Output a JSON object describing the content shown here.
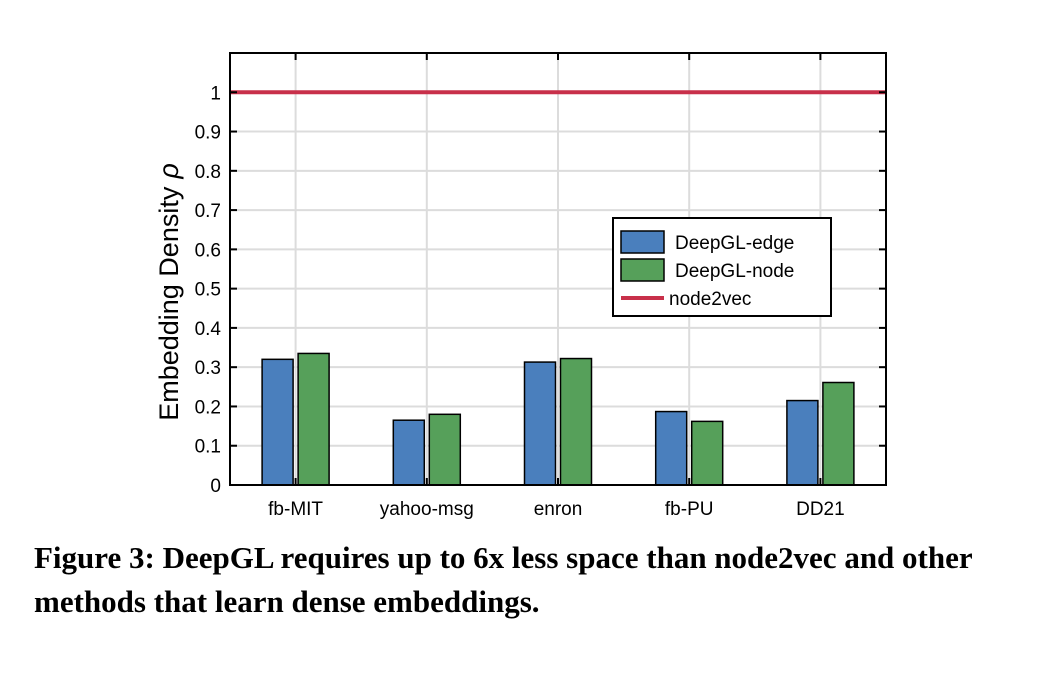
{
  "chart_data": {
    "type": "bar",
    "categories": [
      "fb-MIT",
      "yahoo-msg",
      "enron",
      "fb-PU",
      "DD21"
    ],
    "series": [
      {
        "name": "DeepGL-edge",
        "values": [
          0.32,
          0.165,
          0.313,
          0.187,
          0.215
        ],
        "color": "#4a7fbd"
      },
      {
        "name": "DeepGL-node",
        "values": [
          0.335,
          0.18,
          0.322,
          0.162,
          0.261
        ],
        "color": "#56a05a"
      }
    ],
    "reference_line": {
      "name": "node2vec",
      "value": 1,
      "color": "#c8304a"
    },
    "ylabel": "Embedding Density",
    "ylabel_symbol": "ρ",
    "ylim": [
      0,
      1.1
    ],
    "yticks": [
      "0",
      "0.1",
      "0.2",
      "0.3",
      "0.4",
      "0.5",
      "0.6",
      "0.7",
      "0.8",
      "0.9",
      "1"
    ],
    "grid": true,
    "legend_position": "center-right"
  },
  "caption": "Figure 3: DeepGL requires up to 6x less space than node2vec and other methods that learn dense embeddings."
}
